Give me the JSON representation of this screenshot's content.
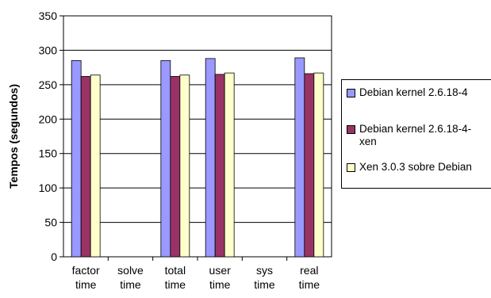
{
  "chart_data": {
    "type": "bar",
    "categories": [
      [
        "factor",
        "time"
      ],
      [
        "solve",
        "time"
      ],
      [
        "total",
        "time"
      ],
      [
        "user",
        "time"
      ],
      [
        "sys",
        "time"
      ],
      [
        "real",
        "time"
      ]
    ],
    "series": [
      {
        "name": "Debian kernel 2.6.18-4",
        "color": "#9999ff",
        "values": [
          285,
          0,
          285,
          288,
          0,
          289
        ]
      },
      {
        "name": "Debian kernel 2.6.18-4-xen",
        "color": "#993366",
        "values": [
          262,
          0,
          262,
          265,
          0,
          266
        ]
      },
      {
        "name": "Xen 3.0.3 sobre Debian",
        "color": "#ffffcc",
        "values": [
          264,
          0,
          264,
          267,
          0,
          267
        ]
      }
    ],
    "ylabel": "Tempos (segundos)",
    "ylim": [
      0,
      350
    ],
    "yticks": [
      0,
      50,
      100,
      150,
      200,
      250,
      300,
      350
    ],
    "grid": true,
    "legend": "right"
  },
  "legend": {
    "items": [
      {
        "lines": [
          "Debian kernel 2.6.18-4"
        ],
        "color": "#9999ff"
      },
      {
        "lines": [
          "Debian kernel 2.6.18-4-",
          "xen"
        ],
        "color": "#993366"
      },
      {
        "lines": [
          "Xen 3.0.3 sobre Debian"
        ],
        "color": "#ffffcc"
      }
    ]
  }
}
